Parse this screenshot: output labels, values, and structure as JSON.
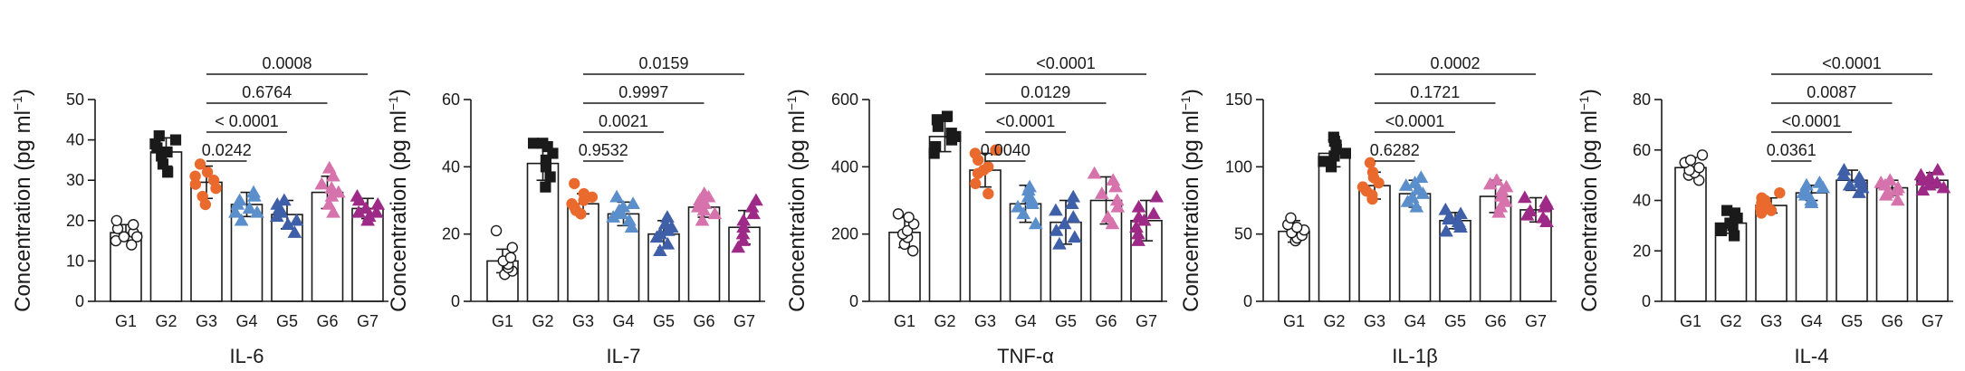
{
  "chart_data": [
    {
      "type": "bar",
      "title": "IL-6",
      "ylabel_main": "Concentration (pg ml",
      "ylabel_sup": "−1",
      "ylabel_end": ")",
      "ylim": [
        0,
        50
      ],
      "yticks": [
        0,
        10,
        20,
        30,
        40,
        50
      ],
      "categories": [
        "G1",
        "G2",
        "G3",
        "G4",
        "G5",
        "G6",
        "G7"
      ],
      "values": [
        17,
        37,
        29.5,
        24,
        21.5,
        27,
        23
      ],
      "errors": [
        2,
        3.5,
        4,
        3,
        3.5,
        4,
        2.5
      ],
      "points": [
        [
          14,
          15,
          16,
          17,
          18,
          19,
          20,
          16
        ],
        [
          32,
          34,
          36,
          37,
          38,
          39,
          40,
          41
        ],
        [
          24,
          26,
          28,
          29,
          30,
          31,
          32,
          34
        ],
        [
          20,
          22,
          23,
          24,
          25,
          26,
          27,
          22
        ],
        [
          17,
          19,
          20,
          22,
          23,
          24,
          25,
          21
        ],
        [
          22,
          24,
          26,
          27,
          28,
          29,
          31,
          33
        ],
        [
          20,
          21,
          22,
          23,
          24,
          25,
          26,
          22
        ]
      ],
      "colors": [
        "#ffffff",
        "#1a1a1a",
        "#ea6a2e",
        "#5b8fcb",
        "#3f5fa8",
        "#d773ac",
        "#9e2a87"
      ],
      "markers": [
        "circle",
        "square",
        "circle",
        "triangle",
        "triangle",
        "triangle",
        "triangle"
      ],
      "comparisons": [
        {
          "from": "G3",
          "to": "G4",
          "p": "0.0242"
        },
        {
          "from": "G3",
          "to": "G5",
          "p": "< 0.0001"
        },
        {
          "from": "G3",
          "to": "G6",
          "p": "0.6764"
        },
        {
          "from": "G3",
          "to": "G7",
          "p": "0.0008"
        }
      ]
    },
    {
      "type": "bar",
      "title": "IL-7",
      "ylabel_main": "Concentration (pg ml",
      "ylabel_sup": "−1",
      "ylabel_end": ")",
      "ylim": [
        0,
        60
      ],
      "yticks": [
        0,
        20,
        40,
        60
      ],
      "categories": [
        "G1",
        "G2",
        "G3",
        "G4",
        "G5",
        "G6",
        "G7"
      ],
      "values": [
        12,
        41,
        29,
        26,
        20,
        28,
        22
      ],
      "errors": [
        3.5,
        5,
        3,
        3.5,
        4,
        3,
        5
      ],
      "points": [
        [
          8,
          9,
          10,
          11,
          12,
          13,
          16,
          21
        ],
        [
          34,
          37,
          40,
          42,
          44,
          46,
          47,
          47
        ],
        [
          26,
          27,
          28,
          29,
          30,
          31,
          32,
          35
        ],
        [
          22,
          24,
          25,
          26,
          27,
          28,
          29,
          31
        ],
        [
          15,
          17,
          19,
          20,
          21,
          22,
          23,
          25
        ],
        [
          24,
          26,
          27,
          28,
          29,
          30,
          31,
          32
        ],
        [
          16,
          18,
          20,
          22,
          24,
          26,
          28,
          30
        ]
      ],
      "colors": [
        "#ffffff",
        "#1a1a1a",
        "#ea6a2e",
        "#5b8fcb",
        "#3f5fa8",
        "#d773ac",
        "#9e2a87"
      ],
      "markers": [
        "circle",
        "square",
        "circle",
        "triangle",
        "triangle",
        "triangle",
        "triangle"
      ],
      "comparisons": [
        {
          "from": "G3",
          "to": "G4",
          "p": "0.9532"
        },
        {
          "from": "G3",
          "to": "G5",
          "p": "0.0021"
        },
        {
          "from": "G3",
          "to": "G6",
          "p": "0.9997"
        },
        {
          "from": "G3",
          "to": "G7",
          "p": "0.0159"
        }
      ]
    },
    {
      "type": "bar",
      "title": "TNF-α",
      "ylabel_main": "Concentration (pg ml",
      "ylabel_sup": "−1",
      "ylabel_end": ")",
      "ylim": [
        0,
        600
      ],
      "yticks": [
        0,
        200,
        400,
        600
      ],
      "categories": [
        "G1",
        "G2",
        "G3",
        "G4",
        "G5",
        "G6",
        "G7"
      ],
      "values": [
        205,
        490,
        390,
        290,
        235,
        300,
        240
      ],
      "errors": [
        45,
        45,
        50,
        55,
        65,
        70,
        60
      ],
      "points": [
        [
          150,
          170,
          190,
          200,
          210,
          230,
          250,
          260
        ],
        [
          440,
          460,
          480,
          490,
          500,
          520,
          540,
          550
        ],
        [
          320,
          350,
          380,
          390,
          400,
          420,
          440,
          450
        ],
        [
          230,
          260,
          280,
          290,
          300,
          310,
          330,
          340
        ],
        [
          170,
          190,
          210,
          230,
          250,
          270,
          290,
          310
        ],
        [
          230,
          250,
          280,
          300,
          320,
          340,
          360,
          380
        ],
        [
          180,
          200,
          220,
          240,
          250,
          260,
          280,
          310
        ]
      ],
      "colors": [
        "#ffffff",
        "#1a1a1a",
        "#ea6a2e",
        "#5b8fcb",
        "#3f5fa8",
        "#d773ac",
        "#9e2a87"
      ],
      "markers": [
        "circle",
        "square",
        "circle",
        "triangle",
        "triangle",
        "triangle",
        "triangle"
      ],
      "comparisons": [
        {
          "from": "G3",
          "to": "G4",
          "p": "0.0040"
        },
        {
          "from": "G3",
          "to": "G5",
          "p": "<0.0001"
        },
        {
          "from": "G3",
          "to": "G6",
          "p": "0.0129"
        },
        {
          "from": "G3",
          "to": "G7",
          "p": "<0.0001"
        }
      ]
    },
    {
      "type": "bar",
      "title": "IL-1β",
      "ylabel_main": "Concentration (pg ml",
      "ylabel_sup": "−1",
      "ylabel_end": ")",
      "ylim": [
        0,
        150
      ],
      "yticks": [
        0,
        50,
        100,
        150
      ],
      "categories": [
        "G1",
        "G2",
        "G3",
        "G4",
        "G5",
        "G6",
        "G7"
      ],
      "values": [
        52,
        110,
        86,
        80,
        60,
        78,
        68
      ],
      "errors": [
        8,
        10,
        10,
        10,
        6,
        12,
        9
      ],
      "points": [
        [
          45,
          47,
          49,
          51,
          53,
          55,
          57,
          62
        ],
        [
          100,
          104,
          108,
          110,
          113,
          116,
          119,
          122
        ],
        [
          76,
          79,
          82,
          85,
          88,
          92,
          96,
          103
        ],
        [
          70,
          74,
          77,
          80,
          83,
          86,
          88,
          92
        ],
        [
          52,
          55,
          57,
          59,
          61,
          63,
          65,
          68
        ],
        [
          66,
          70,
          74,
          78,
          82,
          85,
          87,
          90
        ],
        [
          59,
          62,
          64,
          67,
          70,
          72,
          74,
          77
        ]
      ],
      "colors": [
        "#ffffff",
        "#1a1a1a",
        "#ea6a2e",
        "#5b8fcb",
        "#3f5fa8",
        "#d773ac",
        "#9e2a87"
      ],
      "markers": [
        "circle",
        "square",
        "circle",
        "triangle",
        "triangle",
        "triangle",
        "triangle"
      ],
      "comparisons": [
        {
          "from": "G3",
          "to": "G4",
          "p": "0.6282"
        },
        {
          "from": "G3",
          "to": "G5",
          "p": "<0.0001"
        },
        {
          "from": "G3",
          "to": "G6",
          "p": "0.1721"
        },
        {
          "from": "G3",
          "to": "G7",
          "p": "0.0002"
        }
      ]
    },
    {
      "type": "bar",
      "title": "IL-4",
      "ylabel_main": "Concentration (pg ml",
      "ylabel_sup": "−1",
      "ylabel_end": ")",
      "ylim": [
        0,
        80
      ],
      "yticks": [
        0,
        20,
        40,
        60,
        80
      ],
      "categories": [
        "G1",
        "G2",
        "G3",
        "G4",
        "G5",
        "G6",
        "G7"
      ],
      "values": [
        53,
        31,
        38,
        43,
        48,
        45,
        48
      ],
      "errors": [
        4,
        4,
        3,
        3,
        4,
        3,
        3
      ],
      "points": [
        [
          48,
          50,
          51,
          52,
          53,
          55,
          56,
          58
        ],
        [
          26,
          28,
          29,
          30,
          31,
          33,
          35,
          36
        ],
        [
          35,
          36,
          37,
          38,
          39,
          40,
          41,
          43
        ],
        [
          39,
          40,
          42,
          43,
          44,
          45,
          46,
          47
        ],
        [
          43,
          45,
          46,
          47,
          48,
          49,
          50,
          52
        ],
        [
          40,
          42,
          43,
          44,
          45,
          46,
          47,
          48
        ],
        [
          44,
          45,
          46,
          47,
          48,
          49,
          50,
          52
        ]
      ],
      "colors": [
        "#ffffff",
        "#1a1a1a",
        "#ea6a2e",
        "#5b8fcb",
        "#3f5fa8",
        "#d773ac",
        "#9e2a87"
      ],
      "markers": [
        "circle",
        "square",
        "circle",
        "triangle",
        "triangle",
        "triangle",
        "triangle"
      ],
      "comparisons": [
        {
          "from": "G3",
          "to": "G4",
          "p": "0.0361"
        },
        {
          "from": "G3",
          "to": "G5",
          "p": "<0.0001"
        },
        {
          "from": "G3",
          "to": "G6",
          "p": "0.0087"
        },
        {
          "from": "G3",
          "to": "G7",
          "p": "<0.0001"
        }
      ]
    }
  ]
}
